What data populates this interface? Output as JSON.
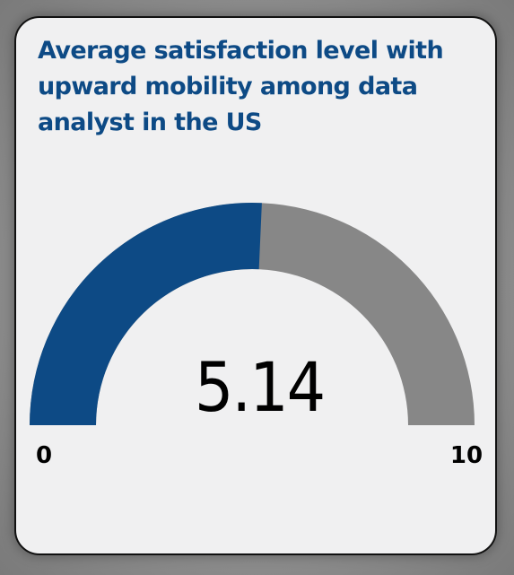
{
  "card": {
    "title": "Average satisfaction level with upward mobility among data analyst in the US"
  },
  "chart_data": {
    "type": "gauge",
    "title": "Average satisfaction level with upward mobility among data analyst in the US",
    "value": 5.14,
    "value_label": "5.14",
    "min": 0,
    "max": 10,
    "min_label": "0",
    "max_label": "10",
    "colors": {
      "fill": "#0d4a85",
      "remainder": "#878787"
    }
  }
}
